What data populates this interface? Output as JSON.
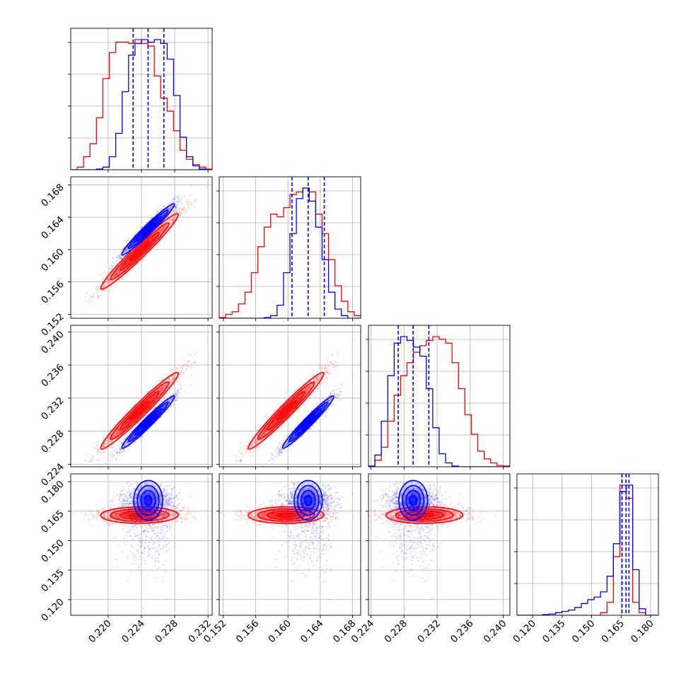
{
  "figure": {
    "type": "corner-plot"
  },
  "colors": {
    "blue": "#0000ff",
    "red": "#ff0000",
    "grid": "#b0b0b0",
    "axes": "#000000",
    "background": "#ffffff"
  },
  "chart_data": {
    "type": "corner",
    "grid": true,
    "params": [
      {
        "range": [
          0.2155,
          0.2325
        ],
        "ticks": [
          0.22,
          0.224,
          0.228,
          0.232
        ],
        "tick_labels": [
          "0.220",
          "0.224",
          "0.228",
          "0.232"
        ]
      },
      {
        "range": [
          0.1515,
          0.169
        ],
        "ticks": [
          0.152,
          0.156,
          0.16,
          0.164,
          0.168
        ],
        "tick_labels": [
          "0.152",
          "0.156",
          "0.160",
          "0.164",
          "0.168"
        ]
      },
      {
        "range": [
          0.2237,
          0.2408
        ],
        "ticks": [
          0.224,
          0.228,
          0.232,
          0.236,
          0.24
        ],
        "tick_labels": [
          "0.224",
          "0.228",
          "0.232",
          "0.236",
          "0.240"
        ]
      },
      {
        "range": [
          0.112,
          0.184
        ],
        "ticks": [
          0.12,
          0.135,
          0.15,
          0.165,
          0.18
        ],
        "tick_labels": [
          "0.120",
          "0.135",
          "0.150",
          "0.165",
          "0.180"
        ]
      }
    ],
    "series": [
      {
        "color": "blue",
        "mean": [
          0.2248,
          0.1625,
          0.2291,
          0.167
        ],
        "std": [
          0.0016,
          0.0016,
          0.0016,
          0.009
        ],
        "quantiles": [
          [
            0.223,
            0.2248,
            0.2267
          ],
          [
            0.1605,
            0.1625,
            0.1645
          ],
          [
            0.2273,
            0.2291,
            0.231
          ],
          [
            0.1655,
            0.1675,
            0.169
          ]
        ],
        "hist": [
          [
            0,
            0,
            0,
            0,
            0.005,
            0.02,
            0.1,
            0.28,
            0.6,
            0.88,
            0.97,
            1.0,
            0.98,
            1.0,
            0.97,
            0.85,
            0.57,
            0.25,
            0.1,
            0.03,
            0.005,
            0
          ],
          [
            0,
            0,
            0,
            0,
            0,
            0,
            0,
            0.005,
            0.02,
            0.1,
            0.35,
            0.65,
            0.92,
            1.0,
            0.9,
            0.7,
            0.45,
            0.2,
            0.07,
            0.02,
            0,
            0
          ],
          [
            0.005,
            0.09,
            0.35,
            0.7,
            0.95,
            1.0,
            0.97,
            0.92,
            0.85,
            0.6,
            0.3,
            0.1,
            0.03,
            0.005,
            0,
            0,
            0,
            0,
            0,
            0,
            0,
            0
          ],
          [
            0,
            0,
            0,
            0,
            0.005,
            0.01,
            0.02,
            0.03,
            0.04,
            0.06,
            0.09,
            0.12,
            0.14,
            0.18,
            0.3,
            0.55,
            0.95,
            1.0,
            0.35,
            0.05,
            0,
            0
          ]
        ]
      },
      {
        "color": "red",
        "mean": [
          0.2237,
          0.1597,
          0.2304,
          0.163
        ],
        "std": [
          0.0023,
          0.0023,
          0.0023,
          0.002
        ],
        "hist": [
          [
            0,
            0.02,
            0.1,
            0.2,
            0.4,
            0.7,
            0.9,
            0.98,
            0.98,
            0.97,
            1.0,
            0.97,
            0.95,
            0.72,
            0.55,
            0.45,
            0.3,
            0.15,
            0.08,
            0.04,
            0.02,
            0.005
          ],
          [
            0.005,
            0.03,
            0.05,
            0.11,
            0.2,
            0.35,
            0.55,
            0.7,
            0.8,
            0.78,
            0.85,
            0.95,
            0.97,
            1.0,
            0.97,
            0.8,
            0.65,
            0.45,
            0.25,
            0.13,
            0.05,
            0.02
          ],
          [
            0.005,
            0.05,
            0.15,
            0.35,
            0.55,
            0.7,
            0.8,
            0.88,
            0.93,
            0.97,
            1.0,
            0.98,
            0.95,
            0.8,
            0.6,
            0.4,
            0.25,
            0.12,
            0.06,
            0.03,
            0.01,
            0.005
          ],
          [
            0,
            0,
            0,
            0,
            0,
            0,
            0,
            0,
            0,
            0,
            0,
            0,
            0,
            0.02,
            0.1,
            0.45,
            1.0,
            0.9,
            0.1,
            0.02,
            0,
            0
          ]
        ]
      }
    ]
  }
}
